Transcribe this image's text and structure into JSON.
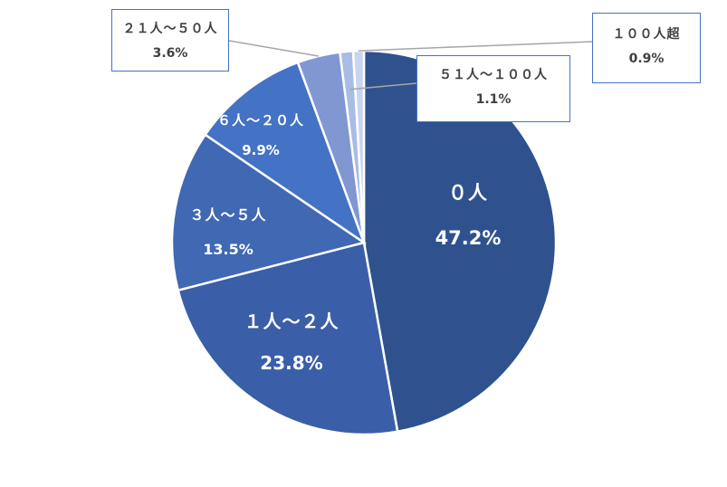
{
  "chart_data": {
    "type": "pie",
    "start_angle_deg": 0,
    "direction": "clockwise",
    "slices": [
      {
        "label": "０人",
        "value": 47.2,
        "value_label": "47.2%",
        "color": "#2f528f"
      },
      {
        "label": "１人～２人",
        "value": 23.8,
        "value_label": "23.8%",
        "color": "#3b5ea8"
      },
      {
        "label": "３人～５人",
        "value": 13.5,
        "value_label": "13.5%",
        "color": "#4068b3"
      },
      {
        "label": "６人～２０人",
        "value": 9.9,
        "value_label": "9.9%",
        "color": "#4472c4"
      },
      {
        "label": "２１人～５０人",
        "value": 3.6,
        "value_label": "3.6%",
        "color": "#8097d2"
      },
      {
        "label": "５１人～１００人",
        "value": 1.1,
        "value_label": "1.1%",
        "color": "#a9bce3"
      },
      {
        "label": "１００人超",
        "value": 0.9,
        "value_label": "0.9%",
        "color": "#c9d5ee"
      }
    ]
  }
}
